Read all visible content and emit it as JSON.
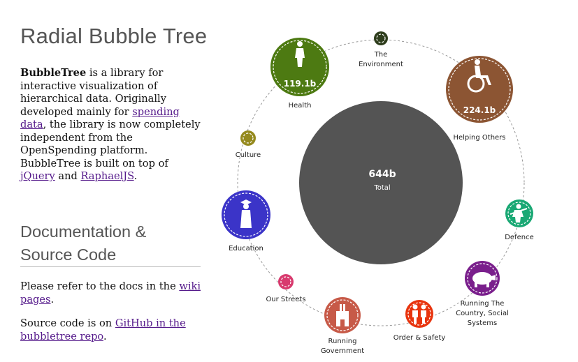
{
  "title": "Radial Bubble Tree",
  "intro": {
    "brand": "BubbleTree",
    "t1": " is a library for interactive visualization of hierarchical data. Originally developed mainly for ",
    "link1": "spending data",
    "t2": ", the library is now completely independent from the OpenSpending platform. BubbleTree is built on top of ",
    "link2": "jQuery",
    "t3": " and ",
    "link3": "RaphaelJS",
    "t4": "."
  },
  "docs_heading": "Documentation & Source Code",
  "docs": {
    "p1_text": "Please refer to the docs in the ",
    "p1_link": "wiki pages",
    "p1_end": ".",
    "p2_text": "Source code is on ",
    "p2_link": "GitHub in the bubbletree repo",
    "p2_end": "."
  },
  "tree": {
    "center": {
      "value": "644b",
      "label": "Total",
      "color": "#545454"
    },
    "nodes": [
      {
        "id": "health",
        "label": [
          "Health"
        ],
        "value": "119.1b",
        "color": "#4d7a12",
        "icon": "person-icon"
      },
      {
        "id": "environment",
        "label": [
          "The",
          "Environment"
        ],
        "value": "",
        "color": "#2e3d1c",
        "icon": ""
      },
      {
        "id": "helping-others",
        "label": [
          "Helping Others"
        ],
        "value": "224.1b",
        "color": "#8c5533",
        "icon": "wheelchair-icon"
      },
      {
        "id": "defence",
        "label": [
          "Defence"
        ],
        "value": "",
        "color": "#1aa874",
        "icon": "soldier-icon"
      },
      {
        "id": "running-country",
        "label": [
          "Running The",
          "Country, Social",
          "Systems"
        ],
        "value": "",
        "color": "#7a1f8c",
        "icon": "piggy-bank-icon"
      },
      {
        "id": "order-safety",
        "label": [
          "Order & Safety"
        ],
        "value": "",
        "color": "#e8340e",
        "icon": "police-icon"
      },
      {
        "id": "running-government",
        "label": [
          "Running",
          "Government"
        ],
        "value": "",
        "color": "#c75a48",
        "icon": "building-icon"
      },
      {
        "id": "our-streets",
        "label": [
          "Our Streets"
        ],
        "value": "",
        "color": "#d83a6e",
        "icon": ""
      },
      {
        "id": "education",
        "label": [
          "Education"
        ],
        "value": "",
        "color": "#3b34c8",
        "icon": "graduate-icon"
      },
      {
        "id": "culture",
        "label": [
          "Culture"
        ],
        "value": "",
        "color": "#958a1e",
        "icon": ""
      }
    ]
  }
}
